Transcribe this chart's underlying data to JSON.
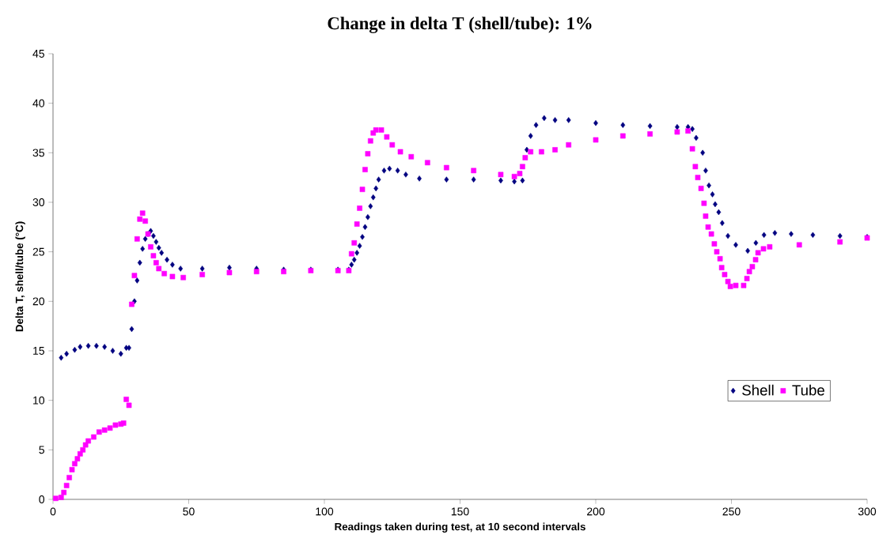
{
  "chart_data": {
    "type": "scatter",
    "title": "Change in delta T (shell/tube): 1%",
    "xlabel": "Readings taken during test, at 10 second intervals",
    "ylabel": "Delta T, shell/tube (°C)",
    "xlim": [
      0,
      300
    ],
    "ylim": [
      0,
      45
    ],
    "xticks": [
      0,
      50,
      100,
      150,
      200,
      250,
      300
    ],
    "yticks": [
      0,
      5,
      10,
      15,
      20,
      25,
      30,
      35,
      40,
      45
    ],
    "grid": false,
    "legend": "bottom right",
    "series": [
      {
        "name": "Shell",
        "color": "#000080",
        "marker": "diamond",
        "x": [
          3,
          5,
          8,
          10,
          13,
          16,
          19,
          22,
          25,
          27,
          28,
          29,
          30,
          31,
          32,
          33,
          34,
          35,
          36,
          37,
          38,
          39,
          40,
          42,
          44,
          47,
          55,
          65,
          75,
          85,
          95,
          105,
          109,
          110,
          111,
          112,
          113,
          114,
          115,
          116,
          117,
          118,
          119,
          120,
          122,
          124,
          127,
          130,
          135,
          145,
          155,
          165,
          170,
          173,
          174.6,
          176,
          178,
          181,
          185,
          190,
          200,
          210,
          220,
          230,
          234,
          235.6,
          237,
          239.4,
          240.5,
          241.7,
          243,
          244,
          245.3,
          246.6,
          248.7,
          251.6,
          256,
          259,
          262,
          266,
          272,
          280,
          290,
          300
        ],
        "values": [
          14.3,
          14.7,
          15.1,
          15.4,
          15.5,
          15.5,
          15.4,
          15.0,
          14.7,
          15.3,
          15.3,
          17.2,
          20.0,
          22.1,
          23.9,
          25.3,
          26.3,
          26.8,
          27.1,
          26.6,
          26.0,
          25.4,
          24.9,
          24.2,
          23.7,
          23.3,
          23.3,
          23.4,
          23.3,
          23.2,
          23.2,
          23.2,
          23.2,
          23.7,
          24.2,
          24.9,
          25.6,
          26.5,
          27.5,
          28.5,
          29.6,
          30.5,
          31.4,
          32.3,
          33.2,
          33.4,
          33.2,
          32.8,
          32.4,
          32.3,
          32.3,
          32.2,
          32.1,
          32.2,
          35.3,
          36.7,
          37.8,
          38.5,
          38.3,
          38.3,
          38.0,
          37.8,
          37.7,
          37.6,
          37.6,
          37.4,
          36.5,
          35.0,
          33.2,
          31.7,
          30.8,
          29.8,
          29.0,
          27.9,
          26.6,
          25.7,
          25.1,
          25.9,
          26.7,
          26.9,
          26.8,
          26.7,
          26.6,
          26.5
        ]
      },
      {
        "name": "Tube",
        "color": "#ff00ff",
        "marker": "square",
        "x": [
          1,
          3,
          4,
          5,
          6,
          7,
          8,
          9,
          10,
          11,
          12,
          13,
          15,
          17,
          19,
          21,
          23,
          25,
          26,
          27,
          28,
          29,
          30,
          31,
          32,
          33,
          34,
          35,
          36,
          37,
          38,
          39,
          41,
          44,
          48,
          55,
          65,
          75,
          85,
          95,
          105,
          109,
          110,
          111,
          112,
          113,
          114,
          115,
          116,
          117,
          118,
          119,
          121,
          123,
          125,
          128,
          132,
          138,
          145,
          155,
          165,
          170,
          172,
          173,
          174,
          176,
          180,
          185,
          190,
          200,
          210,
          220,
          230,
          234,
          235.6,
          236.7,
          237.6,
          238.8,
          239.9,
          240.5,
          241.4,
          242.6,
          243.7,
          244.6,
          245.8,
          246.4,
          247.5,
          248.7,
          249.6,
          251.6,
          254.5,
          255.7,
          256.6,
          257.7,
          258.9,
          259.8,
          261.8,
          264.1,
          275,
          290,
          300
        ],
        "values": [
          0.1,
          0.2,
          0.7,
          1.4,
          2.2,
          3.0,
          3.6,
          4.1,
          4.6,
          5.0,
          5.5,
          5.9,
          6.3,
          6.8,
          7.0,
          7.2,
          7.5,
          7.6,
          7.7,
          10.1,
          9.5,
          19.7,
          22.6,
          26.3,
          28.3,
          28.9,
          28.1,
          26.8,
          25.5,
          24.6,
          23.9,
          23.3,
          22.8,
          22.5,
          22.4,
          22.7,
          22.9,
          23.0,
          23.0,
          23.1,
          23.1,
          23.1,
          24.8,
          25.9,
          27.8,
          29.4,
          31.3,
          33.3,
          34.9,
          36.2,
          37.0,
          37.3,
          37.3,
          36.6,
          35.8,
          35.1,
          34.6,
          34.0,
          33.5,
          33.2,
          32.8,
          32.6,
          32.9,
          33.6,
          34.5,
          35.1,
          35.1,
          35.3,
          35.8,
          36.3,
          36.7,
          36.9,
          37.1,
          37.2,
          35.4,
          33.6,
          32.5,
          31.4,
          29.9,
          28.6,
          27.5,
          26.8,
          25.8,
          25.0,
          24.3,
          23.4,
          22.7,
          22.0,
          21.5,
          21.6,
          21.6,
          22.3,
          23.0,
          23.5,
          24.2,
          24.9,
          25.3,
          25.5,
          25.7,
          26.0,
          26.4
        ]
      }
    ]
  }
}
